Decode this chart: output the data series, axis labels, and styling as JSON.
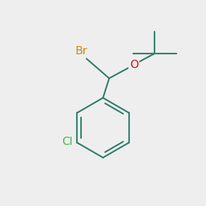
{
  "bg_color": "#eeeeee",
  "bond_color": "#2d7d6a",
  "bond_width": 1.6,
  "atom_colors": {
    "Br": "#c8860a",
    "O": "#dd0000",
    "Cl": "#3db83d"
  },
  "font_size_atoms": 11.5
}
